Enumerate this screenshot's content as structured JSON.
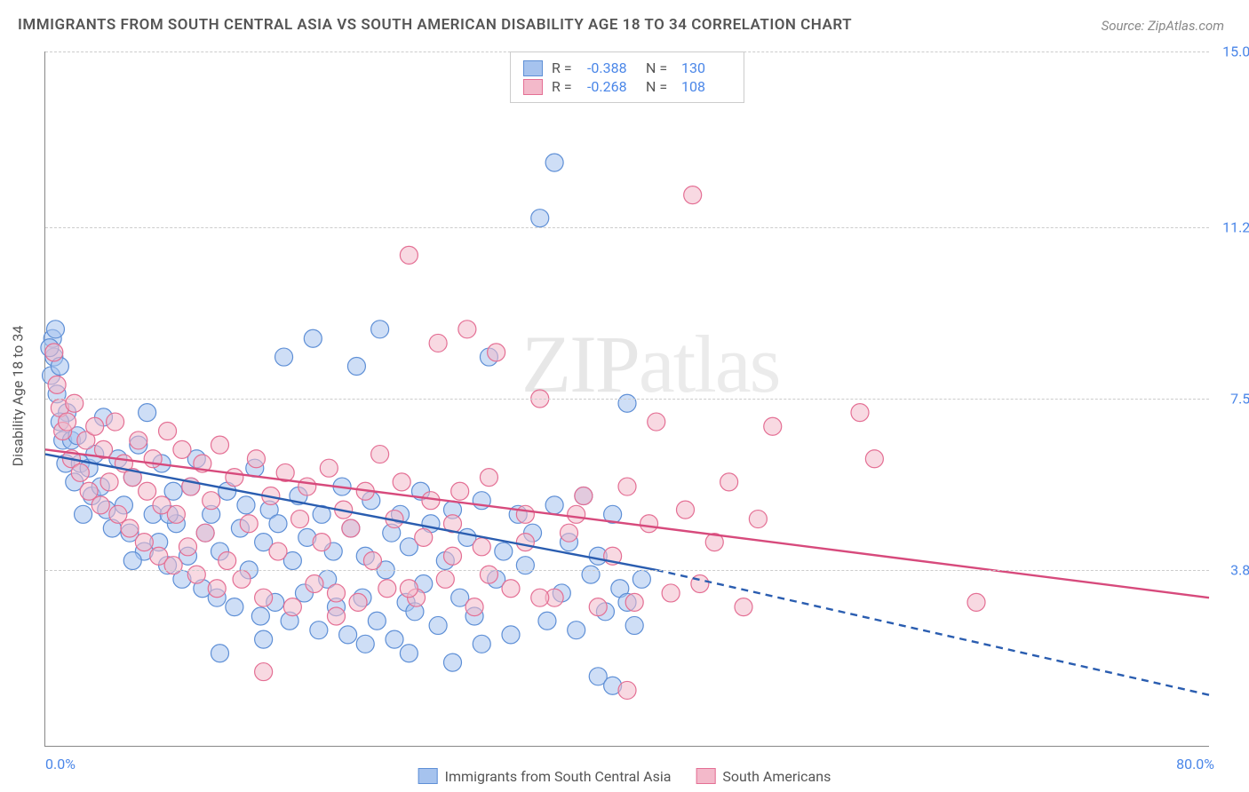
{
  "title": "IMMIGRANTS FROM SOUTH CENTRAL ASIA VS SOUTH AMERICAN DISABILITY AGE 18 TO 34 CORRELATION CHART",
  "source_label": "Source:",
  "source_value": "ZipAtlas.com",
  "watermark": "ZIPatlas",
  "chart": {
    "type": "scatter-with-trendlines",
    "y_axis_title": "Disability Age 18 to 34",
    "x_min": 0.0,
    "x_max": 80.0,
    "y_min": 0.0,
    "y_max": 15.0,
    "x_left_label": "0.0%",
    "x_right_label": "80.0%",
    "y_ticks": [
      {
        "v": 3.8,
        "label": "3.8%"
      },
      {
        "v": 7.5,
        "label": "7.5%"
      },
      {
        "v": 11.2,
        "label": "11.2%"
      },
      {
        "v": 15.0,
        "label": "15.0%"
      }
    ],
    "grid_color": "#cccccc",
    "axis_color": "#888888",
    "label_color": "#4a86e8",
    "title_color": "#555555",
    "background": "#ffffff",
    "marker_radius": 10,
    "marker_opacity": 0.55,
    "trend_width": 2.4,
    "series": [
      {
        "key": "sca",
        "name": "Immigrants from South Central Asia",
        "fill": "#a6c3ee",
        "stroke": "#5e8fd6",
        "trend_color": "#2a5db0",
        "R": "-0.388",
        "N": "130",
        "trend_solid": {
          "x1": 0,
          "y1": 6.3,
          "x2": 42,
          "y2": 3.8
        },
        "trend_dash": {
          "x1": 42,
          "y1": 3.8,
          "x2": 80,
          "y2": 1.1
        }
      },
      {
        "key": "sam",
        "name": "South Americans",
        "fill": "#f3b9ca",
        "stroke": "#e46f94",
        "trend_color": "#d74a7c",
        "R": "-0.268",
        "N": "108",
        "trend_solid": {
          "x1": 0,
          "y1": 6.4,
          "x2": 80,
          "y2": 3.2
        },
        "trend_dash": null
      }
    ],
    "points": {
      "sca": [
        [
          0.5,
          8.8
        ],
        [
          0.6,
          8.4
        ],
        [
          0.7,
          9.0
        ],
        [
          0.4,
          8.0
        ],
        [
          0.8,
          7.6
        ],
        [
          0.3,
          8.6
        ],
        [
          1.0,
          8.2
        ],
        [
          1.2,
          6.6
        ],
        [
          1.5,
          7.2
        ],
        [
          1.0,
          7.0
        ],
        [
          1.4,
          6.1
        ],
        [
          1.8,
          6.6
        ],
        [
          2.0,
          5.7
        ],
        [
          2.4,
          6.1
        ],
        [
          2.2,
          6.7
        ],
        [
          2.6,
          5.0
        ],
        [
          3.0,
          6.0
        ],
        [
          3.4,
          6.3
        ],
        [
          3.2,
          5.4
        ],
        [
          3.8,
          5.6
        ],
        [
          4.0,
          7.1
        ],
        [
          4.2,
          5.1
        ],
        [
          4.6,
          4.7
        ],
        [
          5.0,
          6.2
        ],
        [
          5.4,
          5.2
        ],
        [
          5.8,
          4.6
        ],
        [
          6.0,
          5.8
        ],
        [
          6.4,
          6.5
        ],
        [
          6.8,
          4.2
        ],
        [
          7.0,
          7.2
        ],
        [
          7.4,
          5.0
        ],
        [
          7.8,
          4.4
        ],
        [
          8.0,
          6.1
        ],
        [
          8.4,
          3.9
        ],
        [
          8.8,
          5.5
        ],
        [
          9.0,
          4.8
        ],
        [
          9.4,
          3.6
        ],
        [
          9.8,
          4.1
        ],
        [
          10.0,
          5.6
        ],
        [
          10.4,
          6.2
        ],
        [
          10.8,
          3.4
        ],
        [
          11.0,
          4.6
        ],
        [
          11.4,
          5.0
        ],
        [
          11.8,
          3.2
        ],
        [
          12.0,
          4.2
        ],
        [
          12.5,
          5.5
        ],
        [
          13.0,
          3.0
        ],
        [
          13.4,
          4.7
        ],
        [
          13.8,
          5.2
        ],
        [
          14.0,
          3.8
        ],
        [
          14.4,
          6.0
        ],
        [
          14.8,
          2.8
        ],
        [
          15.0,
          4.4
        ],
        [
          15.4,
          5.1
        ],
        [
          15.8,
          3.1
        ],
        [
          16.0,
          4.8
        ],
        [
          16.4,
          8.4
        ],
        [
          16.8,
          2.7
        ],
        [
          17.0,
          4.0
        ],
        [
          17.4,
          5.4
        ],
        [
          17.8,
          3.3
        ],
        [
          18.0,
          4.5
        ],
        [
          18.4,
          8.8
        ],
        [
          18.8,
          2.5
        ],
        [
          19.0,
          5.0
        ],
        [
          19.4,
          3.6
        ],
        [
          19.8,
          4.2
        ],
        [
          20.0,
          3.0
        ],
        [
          20.4,
          5.6
        ],
        [
          20.8,
          2.4
        ],
        [
          21.0,
          4.7
        ],
        [
          21.4,
          8.2
        ],
        [
          21.8,
          3.2
        ],
        [
          22.0,
          4.1
        ],
        [
          22.4,
          5.3
        ],
        [
          22.8,
          2.7
        ],
        [
          23.0,
          9.0
        ],
        [
          23.4,
          3.8
        ],
        [
          23.8,
          4.6
        ],
        [
          24.0,
          2.3
        ],
        [
          24.4,
          5.0
        ],
        [
          24.8,
          3.1
        ],
        [
          25.0,
          4.3
        ],
        [
          25.4,
          2.9
        ],
        [
          25.8,
          5.5
        ],
        [
          26.0,
          3.5
        ],
        [
          26.5,
          4.8
        ],
        [
          27.0,
          2.6
        ],
        [
          27.5,
          4.0
        ],
        [
          28.0,
          5.1
        ],
        [
          28.5,
          3.2
        ],
        [
          29.0,
          4.5
        ],
        [
          29.5,
          2.8
        ],
        [
          30.0,
          5.3
        ],
        [
          30.5,
          8.4
        ],
        [
          31.0,
          3.6
        ],
        [
          31.5,
          4.2
        ],
        [
          32.0,
          2.4
        ],
        [
          32.5,
          5.0
        ],
        [
          33.0,
          3.9
        ],
        [
          33.5,
          4.6
        ],
        [
          34.0,
          11.4
        ],
        [
          34.5,
          2.7
        ],
        [
          35.0,
          5.2
        ],
        [
          35.5,
          3.3
        ],
        [
          36.0,
          4.4
        ],
        [
          36.5,
          2.5
        ],
        [
          37.0,
          5.4
        ],
        [
          37.5,
          3.7
        ],
        [
          38.0,
          4.1
        ],
        [
          38.5,
          2.9
        ],
        [
          39.0,
          5.0
        ],
        [
          39.5,
          3.4
        ],
        [
          40.0,
          7.4
        ],
        [
          40.5,
          2.6
        ],
        [
          35.0,
          12.6
        ],
        [
          38.0,
          1.5
        ],
        [
          39.0,
          1.3
        ],
        [
          40.0,
          3.1
        ],
        [
          41.0,
          3.6
        ],
        [
          22.0,
          2.2
        ],
        [
          25.0,
          2.0
        ],
        [
          28.0,
          1.8
        ],
        [
          30.0,
          2.2
        ],
        [
          12.0,
          2.0
        ],
        [
          15.0,
          2.3
        ],
        [
          6.0,
          4.0
        ],
        [
          8.5,
          5.0
        ]
      ],
      "sam": [
        [
          0.6,
          8.5
        ],
        [
          0.8,
          7.8
        ],
        [
          1.0,
          7.3
        ],
        [
          1.2,
          6.8
        ],
        [
          1.5,
          7.0
        ],
        [
          1.8,
          6.2
        ],
        [
          2.0,
          7.4
        ],
        [
          2.4,
          5.9
        ],
        [
          2.8,
          6.6
        ],
        [
          3.0,
          5.5
        ],
        [
          3.4,
          6.9
        ],
        [
          3.8,
          5.2
        ],
        [
          4.0,
          6.4
        ],
        [
          4.4,
          5.7
        ],
        [
          4.8,
          7.0
        ],
        [
          5.0,
          5.0
        ],
        [
          5.4,
          6.1
        ],
        [
          5.8,
          4.7
        ],
        [
          6.0,
          5.8
        ],
        [
          6.4,
          6.6
        ],
        [
          6.8,
          4.4
        ],
        [
          7.0,
          5.5
        ],
        [
          7.4,
          6.2
        ],
        [
          7.8,
          4.1
        ],
        [
          8.0,
          5.2
        ],
        [
          8.4,
          6.8
        ],
        [
          8.8,
          3.9
        ],
        [
          9.0,
          5.0
        ],
        [
          9.4,
          6.4
        ],
        [
          9.8,
          4.3
        ],
        [
          10.0,
          5.6
        ],
        [
          10.4,
          3.7
        ],
        [
          10.8,
          6.1
        ],
        [
          11.0,
          4.6
        ],
        [
          11.4,
          5.3
        ],
        [
          11.8,
          3.4
        ],
        [
          12.0,
          6.5
        ],
        [
          12.5,
          4.0
        ],
        [
          13.0,
          5.8
        ],
        [
          13.5,
          3.6
        ],
        [
          14.0,
          4.8
        ],
        [
          14.5,
          6.2
        ],
        [
          15.0,
          3.2
        ],
        [
          15.5,
          5.4
        ],
        [
          16.0,
          4.2
        ],
        [
          16.5,
          5.9
        ],
        [
          17.0,
          3.0
        ],
        [
          17.5,
          4.9
        ],
        [
          18.0,
          5.6
        ],
        [
          18.5,
          3.5
        ],
        [
          19.0,
          4.4
        ],
        [
          19.5,
          6.0
        ],
        [
          20.0,
          3.3
        ],
        [
          20.5,
          5.1
        ],
        [
          21.0,
          4.7
        ],
        [
          21.5,
          3.1
        ],
        [
          22.0,
          5.5
        ],
        [
          22.5,
          4.0
        ],
        [
          23.0,
          6.3
        ],
        [
          23.5,
          3.4
        ],
        [
          24.0,
          4.9
        ],
        [
          24.5,
          5.7
        ],
        [
          25.0,
          10.6
        ],
        [
          25.5,
          3.2
        ],
        [
          26.0,
          4.5
        ],
        [
          26.5,
          5.3
        ],
        [
          27.0,
          8.7
        ],
        [
          27.5,
          3.6
        ],
        [
          28.0,
          4.8
        ],
        [
          28.5,
          5.5
        ],
        [
          29.0,
          9.0
        ],
        [
          29.5,
          3.0
        ],
        [
          30.0,
          4.3
        ],
        [
          30.5,
          5.8
        ],
        [
          31.0,
          8.5
        ],
        [
          32.0,
          3.4
        ],
        [
          33.0,
          5.0
        ],
        [
          34.0,
          7.5
        ],
        [
          35.0,
          3.2
        ],
        [
          36.0,
          4.6
        ],
        [
          37.0,
          5.4
        ],
        [
          38.0,
          3.0
        ],
        [
          39.0,
          4.1
        ],
        [
          40.0,
          5.6
        ],
        [
          40.5,
          3.1
        ],
        [
          41.5,
          4.8
        ],
        [
          42.0,
          7.0
        ],
        [
          43.0,
          3.3
        ],
        [
          44.0,
          5.1
        ],
        [
          44.5,
          11.9
        ],
        [
          45.0,
          3.5
        ],
        [
          46.0,
          4.4
        ],
        [
          47.0,
          5.7
        ],
        [
          48.0,
          3.0
        ],
        [
          49.0,
          4.9
        ],
        [
          50.0,
          6.9
        ],
        [
          56.0,
          7.2
        ],
        [
          57.0,
          6.2
        ],
        [
          64.0,
          3.1
        ],
        [
          40.0,
          1.2
        ],
        [
          34.0,
          3.2
        ],
        [
          36.5,
          5.0
        ],
        [
          15.0,
          1.6
        ],
        [
          20.0,
          2.8
        ],
        [
          25.0,
          3.4
        ],
        [
          28.0,
          4.1
        ],
        [
          30.5,
          3.7
        ],
        [
          33.0,
          4.4
        ]
      ]
    }
  },
  "legend_top_rows": [
    {
      "seriesKey": "sca"
    },
    {
      "seriesKey": "sam"
    }
  ],
  "legend_bottom": [
    {
      "seriesKey": "sca"
    },
    {
      "seriesKey": "sam"
    }
  ]
}
